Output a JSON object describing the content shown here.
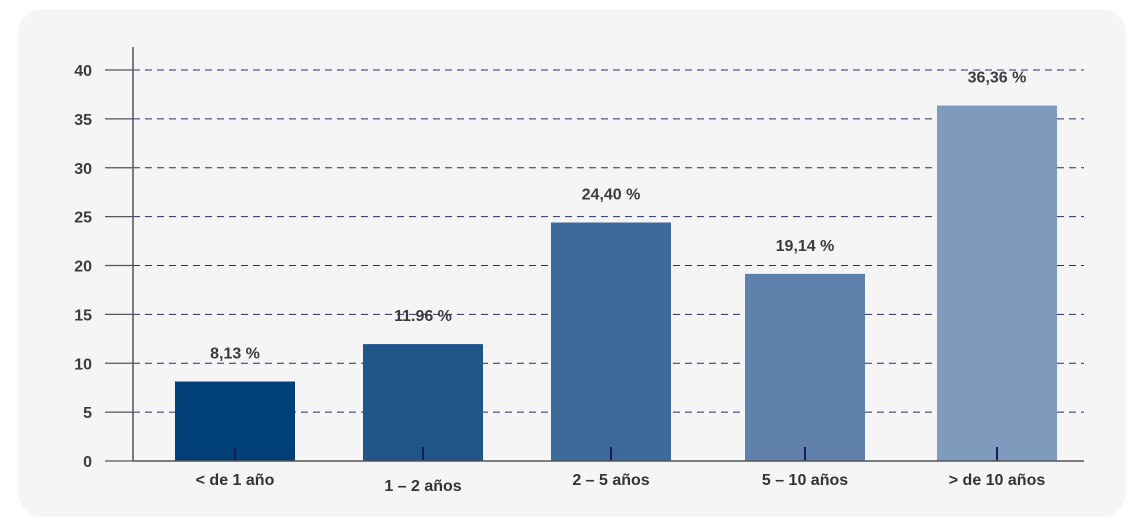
{
  "chart_data": {
    "type": "bar",
    "categories": [
      "< de 1 año",
      "1 – 2 años",
      "2 – 5 años",
      "5 – 10 años",
      "> de 10 años"
    ],
    "values": [
      8.13,
      11.96,
      24.4,
      19.14,
      36.36
    ],
    "data_labels": [
      "8,13 %",
      "11.96 %",
      "24,40 %",
      "19,14 %",
      "36,36 %"
    ],
    "y_ticks": [
      "0",
      "5",
      "10",
      "15",
      "20",
      "25",
      "30",
      "35",
      "40"
    ],
    "ylim": [
      0,
      40
    ],
    "grid": true,
    "bar_colors": [
      "#003f78",
      "#20558a",
      "#3e6a99",
      "#6081ab",
      "#7e9bbd"
    ],
    "grid_color": "#2e2e6e",
    "axis_color": "#555555",
    "tick_mark_color": "#1a1a5e"
  }
}
